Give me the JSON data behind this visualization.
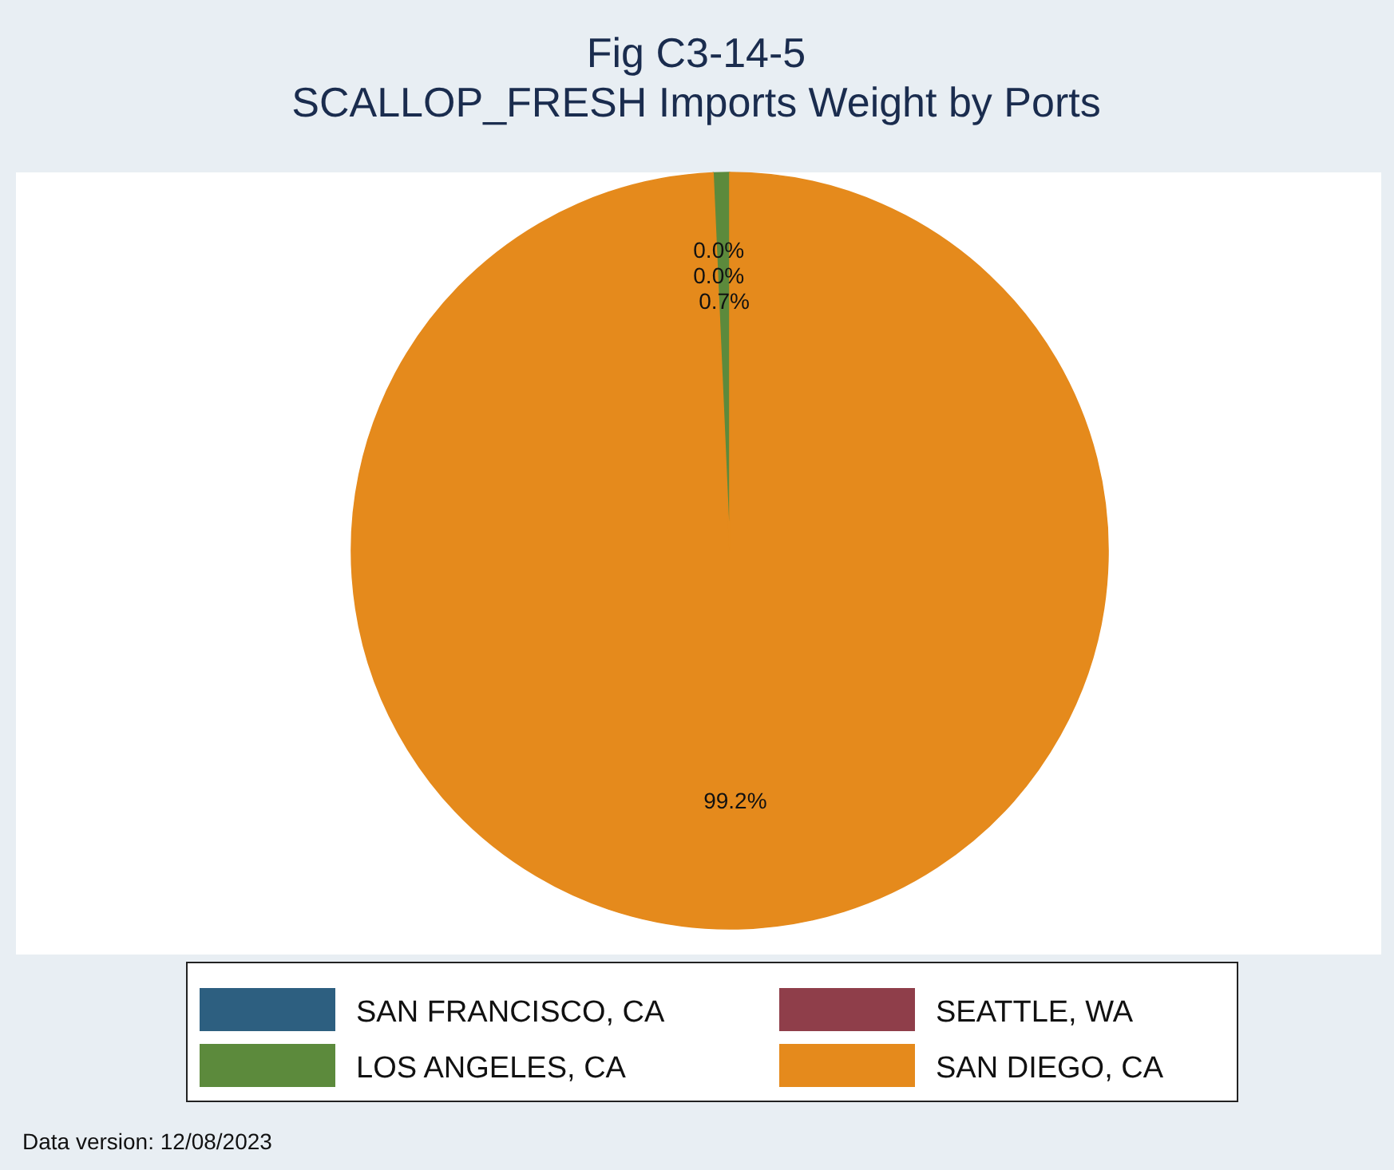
{
  "chart_data": {
    "type": "pie",
    "title": "Fig C3-14-5\nSCALLOP_FRESH Imports Weight by Ports",
    "categories": [
      "SAN FRANCISCO, CA",
      "SEATTLE, WA",
      "LOS ANGELES, CA",
      "SAN DIEGO, CA"
    ],
    "values": [
      0,
      0,
      0.7,
      99.2
    ],
    "value_labels": [
      "0.0%",
      "0.0%",
      "0.7%",
      "99.2%"
    ],
    "colors": [
      "#2d5f80",
      "#8f3e4a",
      "#5c8a3c",
      "#e58a1c"
    ],
    "legend": "bottom",
    "annotations": [
      "Data version: 12/08/2023"
    ]
  }
}
